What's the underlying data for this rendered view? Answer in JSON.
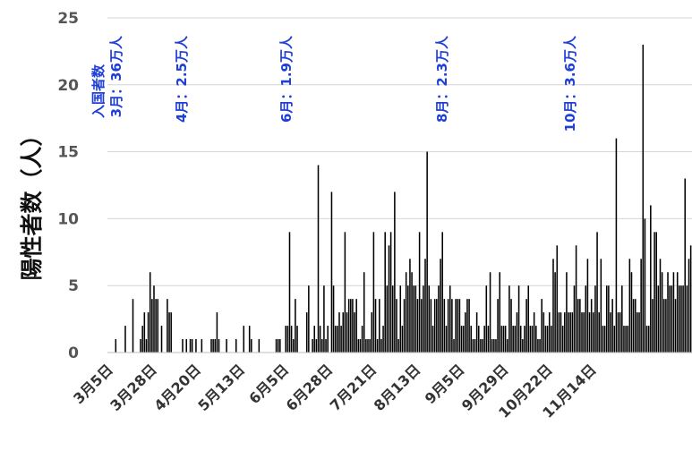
{
  "chart_data": {
    "type": "bar",
    "title": "",
    "xlabel": "",
    "ylabel": "陽性者数（人）",
    "ylim": [
      0,
      25
    ],
    "yticks": [
      "0",
      "5",
      "10",
      "15",
      "20",
      "25"
    ],
    "xticks": [
      "3月5日",
      "3月28日",
      "4月20日",
      "5月13日",
      "6月5日",
      "6月28日",
      "7月21日",
      "8月13日",
      "9月5日",
      "9月29日",
      "10月22日",
      "11月14日"
    ],
    "grid": true,
    "bar_color": "#000000",
    "annotation_color": "#1f3fd6",
    "annotations": [
      {
        "lines": [
          "入国者数",
          "3月：36万人"
        ],
        "position": "early-March"
      },
      {
        "lines": [
          "4月：2.5万人"
        ],
        "position": "early-April"
      },
      {
        "lines": [
          "6月：1.9万人"
        ],
        "position": "early-June"
      },
      {
        "lines": [
          "8月：2.3万人"
        ],
        "position": "early-August"
      },
      {
        "lines": [
          "10月：3.6万人"
        ],
        "position": "early-October"
      }
    ],
    "x_start_date": "3月5日",
    "series": [
      {
        "values": [
          0,
          0,
          0,
          0,
          1,
          0,
          0,
          0,
          0,
          2,
          0,
          0,
          0,
          4,
          0,
          0,
          0,
          1,
          2,
          3,
          1,
          3,
          6,
          4,
          5,
          4,
          4,
          0,
          2,
          0,
          0,
          4,
          3,
          3,
          0,
          0,
          0,
          0,
          0,
          1,
          0,
          1,
          0,
          1,
          1,
          0,
          1,
          0,
          0,
          1,
          0,
          0,
          0,
          0,
          1,
          1,
          1,
          3,
          1,
          0,
          0,
          0,
          1,
          0,
          0,
          0,
          0,
          1,
          0,
          0,
          0,
          2,
          0,
          0,
          2,
          1,
          0,
          0,
          0,
          1,
          0,
          0,
          0,
          0,
          0,
          0,
          0,
          0,
          1,
          1,
          1,
          0,
          0,
          2,
          2,
          9,
          2,
          1,
          4,
          2,
          0,
          0,
          0,
          0,
          3,
          5,
          0,
          1,
          2,
          1,
          14,
          2,
          1,
          5,
          1,
          2,
          0,
          12,
          5,
          2,
          2,
          3,
          2,
          3,
          9,
          3,
          4,
          4,
          4,
          3,
          4,
          1,
          1,
          2,
          6,
          1,
          1,
          1,
          3,
          9,
          4,
          1,
          4,
          1,
          2,
          9,
          5,
          8,
          9,
          5,
          12,
          4,
          1,
          5,
          2,
          4,
          6,
          5,
          7,
          6,
          5,
          5,
          4,
          9,
          4,
          5,
          7,
          15,
          5,
          4,
          2,
          4,
          4,
          5,
          7,
          9,
          4,
          2,
          4,
          5,
          4,
          1,
          4,
          4,
          4,
          2,
          2,
          3,
          4,
          4,
          2,
          1,
          1,
          3,
          2,
          1,
          1,
          2,
          5,
          2,
          6,
          1,
          1,
          1,
          4,
          6,
          2,
          2,
          2,
          1,
          5,
          4,
          2,
          2,
          3,
          5,
          2,
          1,
          2,
          4,
          5,
          2,
          2,
          3,
          2,
          1,
          1,
          4,
          3,
          2,
          2,
          3,
          2,
          7,
          6,
          8,
          3,
          3,
          2,
          3,
          6,
          3,
          3,
          3,
          5,
          8,
          4,
          4,
          3,
          3,
          5,
          7,
          3,
          4,
          3,
          5,
          9,
          3,
          7,
          2,
          2,
          5,
          5,
          3,
          4,
          2,
          16,
          3,
          3,
          5,
          2,
          2,
          2,
          7,
          6,
          4,
          4,
          3,
          3,
          7,
          23,
          10,
          2,
          2,
          11,
          4,
          9,
          9,
          5,
          7,
          6,
          4,
          4,
          6,
          5,
          5,
          6,
          4,
          6,
          5,
          5,
          5,
          13,
          5,
          7,
          8
        ]
      }
    ]
  }
}
